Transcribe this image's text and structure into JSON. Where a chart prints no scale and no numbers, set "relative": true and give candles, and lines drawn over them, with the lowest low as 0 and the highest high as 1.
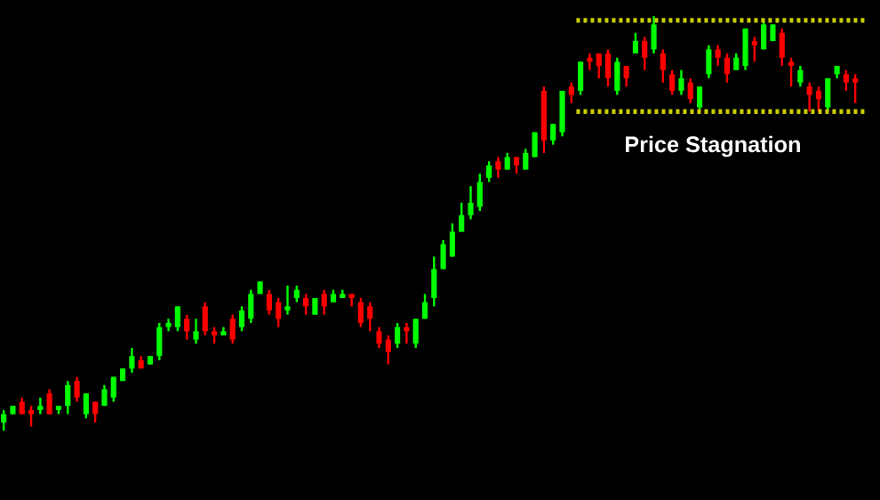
{
  "chart_data": {
    "type": "candlestick",
    "relative": true,
    "categories": [
      null,
      null,
      null,
      null,
      null,
      null,
      null,
      null,
      null,
      null,
      null,
      null,
      null,
      null,
      null,
      null,
      null,
      null,
      null,
      null,
      null,
      null,
      null,
      null,
      null,
      null,
      null,
      null,
      null,
      null,
      null,
      null,
      null,
      null,
      null,
      null,
      null,
      null,
      null,
      null,
      null,
      null,
      null,
      null,
      null,
      null,
      null,
      null,
      null,
      null,
      null,
      null,
      null,
      null,
      null,
      null,
      null,
      null,
      null,
      null,
      null,
      null,
      null,
      null,
      null,
      null,
      null,
      null,
      null,
      null,
      null,
      null,
      null,
      null,
      null,
      null,
      null,
      null,
      null,
      null,
      null,
      null,
      null,
      null,
      null,
      null,
      null,
      null,
      null,
      null,
      null,
      null,
      null,
      null
    ],
    "ohlc": [
      [
        0.02,
        0.05,
        0,
        0.04
      ],
      [
        0.04,
        0.06,
        0.04,
        0.06
      ],
      [
        0.07,
        0.08,
        0.04,
        0.04
      ],
      [
        0.05,
        0.06,
        0.01,
        0.04
      ],
      [
        0.05,
        0.08,
        0.04,
        0.06
      ],
      [
        0.09,
        0.1,
        0.04,
        0.04
      ],
      [
        0.05,
        0.06,
        0.04,
        0.06
      ],
      [
        0.06,
        0.12,
        0.04,
        0.11
      ],
      [
        0.12,
        0.13,
        0.07,
        0.08
      ],
      [
        0.04,
        0.09,
        0.03,
        0.09
      ],
      [
        0.07,
        0.07,
        0.02,
        0.04
      ],
      [
        0.06,
        0.11,
        0.06,
        0.1
      ],
      [
        0.08,
        0.13,
        0.07,
        0.13
      ],
      [
        0.12,
        0.15,
        0.12,
        0.15
      ],
      [
        0.15,
        0.2,
        0.14,
        0.18
      ],
      [
        0.17,
        0.18,
        0.15,
        0.15
      ],
      [
        0.16,
        0.18,
        0.16,
        0.18
      ],
      [
        0.18,
        0.26,
        0.17,
        0.25
      ],
      [
        0.25,
        0.27,
        0.24,
        0.26
      ],
      [
        0.25,
        0.3,
        0.24,
        0.3
      ],
      [
        0.27,
        0.28,
        0.22,
        0.24
      ],
      [
        0.22,
        0.27,
        0.21,
        0.24
      ],
      [
        0.3,
        0.31,
        0.23,
        0.24
      ],
      [
        0.24,
        0.25,
        0.21,
        0.23
      ],
      [
        0.23,
        0.25,
        0.23,
        0.24
      ],
      [
        0.27,
        0.28,
        0.21,
        0.22
      ],
      [
        0.25,
        0.3,
        0.24,
        0.29
      ],
      [
        0.27,
        0.34,
        0.26,
        0.33
      ],
      [
        0.33,
        0.36,
        0.33,
        0.36
      ],
      [
        0.33,
        0.34,
        0.28,
        0.29
      ],
      [
        0.31,
        0.32,
        0.25,
        0.27
      ],
      [
        0.29,
        0.35,
        0.28,
        0.3
      ],
      [
        0.32,
        0.35,
        0.31,
        0.34
      ],
      [
        0.32,
        0.33,
        0.28,
        0.3
      ],
      [
        0.28,
        0.32,
        0.28,
        0.32
      ],
      [
        0.33,
        0.34,
        0.28,
        0.3
      ],
      [
        0.31,
        0.34,
        0.31,
        0.33
      ],
      [
        0.32,
        0.34,
        0.32,
        0.33
      ],
      [
        0.33,
        0.33,
        0.3,
        0.32
      ],
      [
        0.31,
        0.32,
        0.25,
        0.26
      ],
      [
        0.3,
        0.31,
        0.24,
        0.27
      ],
      [
        0.24,
        0.25,
        0.2,
        0.21
      ],
      [
        0.22,
        0.23,
        0.16,
        0.19
      ],
      [
        0.21,
        0.26,
        0.2,
        0.25
      ],
      [
        0.25,
        0.26,
        0.21,
        0.24
      ],
      [
        0.21,
        0.27,
        0.2,
        0.27
      ],
      [
        0.27,
        0.33,
        0.27,
        0.31
      ],
      [
        0.32,
        0.42,
        0.3,
        0.39
      ],
      [
        0.39,
        0.46,
        0.39,
        0.45
      ],
      [
        0.42,
        0.5,
        0.42,
        0.48
      ],
      [
        0.48,
        0.55,
        0.48,
        0.52
      ],
      [
        0.52,
        0.59,
        0.51,
        0.55
      ],
      [
        0.54,
        0.62,
        0.53,
        0.6
      ],
      [
        0.61,
        0.65,
        0.6,
        0.64
      ],
      [
        0.65,
        0.66,
        0.61,
        0.63
      ],
      [
        0.63,
        0.67,
        0.63,
        0.66
      ],
      [
        0.66,
        0.66,
        0.62,
        0.64
      ],
      [
        0.63,
        0.68,
        0.63,
        0.67
      ],
      [
        0.66,
        0.72,
        0.66,
        0.72
      ],
      [
        0.82,
        0.83,
        0.67,
        0.7
      ],
      [
        0.7,
        0.74,
        0.69,
        0.74
      ],
      [
        0.72,
        0.82,
        0.71,
        0.82
      ],
      [
        0.83,
        0.84,
        0.79,
        0.81
      ],
      [
        0.82,
        0.89,
        0.81,
        0.89
      ],
      [
        0.9,
        0.91,
        0.87,
        0.89
      ],
      [
        0.91,
        0.91,
        0.85,
        0.88
      ],
      [
        0.91,
        0.92,
        0.83,
        0.85
      ],
      [
        0.82,
        0.9,
        0.81,
        0.89
      ],
      [
        0.88,
        0.88,
        0.83,
        0.85
      ],
      [
        0.91,
        0.96,
        0.91,
        0.94
      ],
      [
        0.94,
        0.95,
        0.87,
        0.9
      ],
      [
        0.92,
        1,
        0.91,
        0.98
      ],
      [
        0.91,
        0.92,
        0.84,
        0.87
      ],
      [
        0.86,
        0.87,
        0.81,
        0.82
      ],
      [
        0.82,
        0.87,
        0.81,
        0.85
      ],
      [
        0.84,
        0.85,
        0.79,
        0.8
      ],
      [
        0.78,
        0.83,
        0.77,
        0.83
      ],
      [
        0.86,
        0.93,
        0.85,
        0.92
      ],
      [
        0.92,
        0.93,
        0.88,
        0.9
      ],
      [
        0.9,
        0.91,
        0.84,
        0.86
      ],
      [
        0.87,
        0.91,
        0.87,
        0.9
      ],
      [
        0.88,
        0.97,
        0.87,
        0.97
      ],
      [
        0.94,
        0.95,
        0.89,
        0.93
      ],
      [
        0.92,
        0.99,
        0.92,
        0.98
      ],
      [
        0.94,
        0.98,
        0.94,
        0.98
      ],
      [
        0.96,
        0.97,
        0.88,
        0.9
      ],
      [
        0.89,
        0.9,
        0.83,
        0.88
      ],
      [
        0.84,
        0.88,
        0.83,
        0.87
      ],
      [
        0.83,
        0.84,
        0.77,
        0.81
      ],
      [
        0.82,
        0.83,
        0.77,
        0.8
      ],
      [
        0.78,
        0.85,
        0.77,
        0.85
      ],
      [
        0.86,
        0.88,
        0.85,
        0.88
      ],
      [
        0.86,
        0.87,
        0.82,
        0.84
      ],
      [
        0.85,
        0.86,
        0.79,
        0.84
      ]
    ],
    "colors": [
      "#00ff00",
      "#00ff00",
      "#ff0000",
      "#ff0000",
      "#00ff00",
      "#ff0000",
      "#00ff00",
      "#00ff00",
      "#ff0000",
      "#00ff00",
      "#ff0000",
      "#00ff00",
      "#00ff00",
      "#00ff00",
      "#00ff00",
      "#ff0000",
      "#00ff00",
      "#00ff00",
      "#00ff00",
      "#00ff00",
      "#ff0000",
      "#00ff00",
      "#ff0000",
      "#ff0000",
      "#00ff00",
      "#ff0000",
      "#00ff00",
      "#00ff00",
      "#00ff00",
      "#ff0000",
      "#ff0000",
      "#00ff00",
      "#00ff00",
      "#ff0000",
      "#00ff00",
      "#ff0000",
      "#00ff00",
      "#00ff00",
      "#ff0000",
      "#ff0000",
      "#ff0000",
      "#ff0000",
      "#ff0000",
      "#00ff00",
      "#ff0000",
      "#00ff00",
      "#00ff00",
      "#00ff00",
      "#00ff00",
      "#00ff00",
      "#00ff00",
      "#00ff00",
      "#00ff00",
      "#00ff00",
      "#ff0000",
      "#00ff00",
      "#ff0000",
      "#00ff00",
      "#00ff00",
      "#ff0000",
      "#00ff00",
      "#00ff00",
      "#ff0000",
      "#00ff00",
      "#ff0000",
      "#ff0000",
      "#ff0000",
      "#00ff00",
      "#ff0000",
      "#00ff00",
      "#ff0000",
      "#00ff00",
      "#ff0000",
      "#ff0000",
      "#00ff00",
      "#ff0000",
      "#00ff00",
      "#00ff00",
      "#ff0000",
      "#ff0000",
      "#00ff00",
      "#00ff00",
      "#ff0000",
      "#00ff00",
      "#00ff00",
      "#ff0000",
      "#ff0000",
      "#00ff00",
      "#ff0000",
      "#ff0000",
      "#00ff00",
      "#00ff00",
      "#ff0000",
      "#ff0000"
    ],
    "ref_lines": [
      {
        "axis": "y",
        "value": 0.99,
        "color": "#cccc00",
        "line_style": "dotted"
      },
      {
        "axis": "y",
        "value": 0.77,
        "color": "#cccc00",
        "line_style": "dotted"
      }
    ],
    "annotations": [
      "Price Stagnation"
    ]
  }
}
